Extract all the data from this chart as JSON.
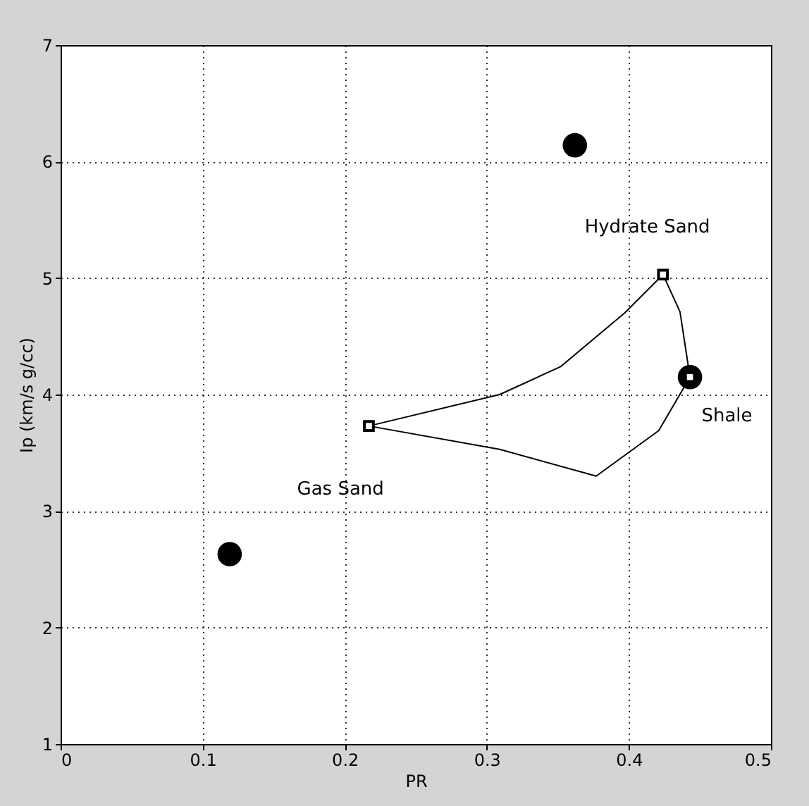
{
  "chart_data": {
    "type": "line",
    "xlabel": "PR",
    "ylabel": "Ip (km/s g/cc)",
    "xlim": [
      0,
      0.5
    ],
    "xticks": [
      0,
      0.1,
      0.2,
      0.3,
      0.4,
      0.5
    ],
    "ylim": [
      1,
      7
    ],
    "yticks": [
      1,
      2,
      3,
      4,
      5,
      6,
      7
    ],
    "grid": true,
    "series": [
      {
        "color": "#000000",
        "marker": "none",
        "x": [
          0.217,
          0.309,
          0.352,
          0.397,
          0.424
        ],
        "values": [
          3.73,
          4.0,
          4.24,
          4.7,
          5.03
        ]
      },
      {
        "color": "#000000",
        "marker": "none",
        "x": [
          0.424,
          0.436,
          0.443
        ],
        "values": [
          5.03,
          4.71,
          4.15
        ]
      },
      {
        "color": "#000000",
        "marker": "none",
        "x": [
          0.217,
          0.309,
          0.377,
          0.421,
          0.443
        ],
        "values": [
          3.73,
          3.53,
          3.3,
          3.69,
          4.15
        ]
      },
      {
        "type": "scatter",
        "color": "#000000",
        "marker": "circle",
        "x": [
          0.119,
          0.362,
          0.443
        ],
        "values": [
          2.63,
          6.14,
          4.15
        ]
      },
      {
        "type": "scatter",
        "color": "#000000",
        "marker": "square",
        "x": [
          0.217,
          0.424,
          0.443
        ],
        "values": [
          3.73,
          5.03,
          4.15
        ]
      }
    ],
    "annotations": [
      "Hydrate Sand",
      "Shale",
      "Gas Sand"
    ]
  }
}
